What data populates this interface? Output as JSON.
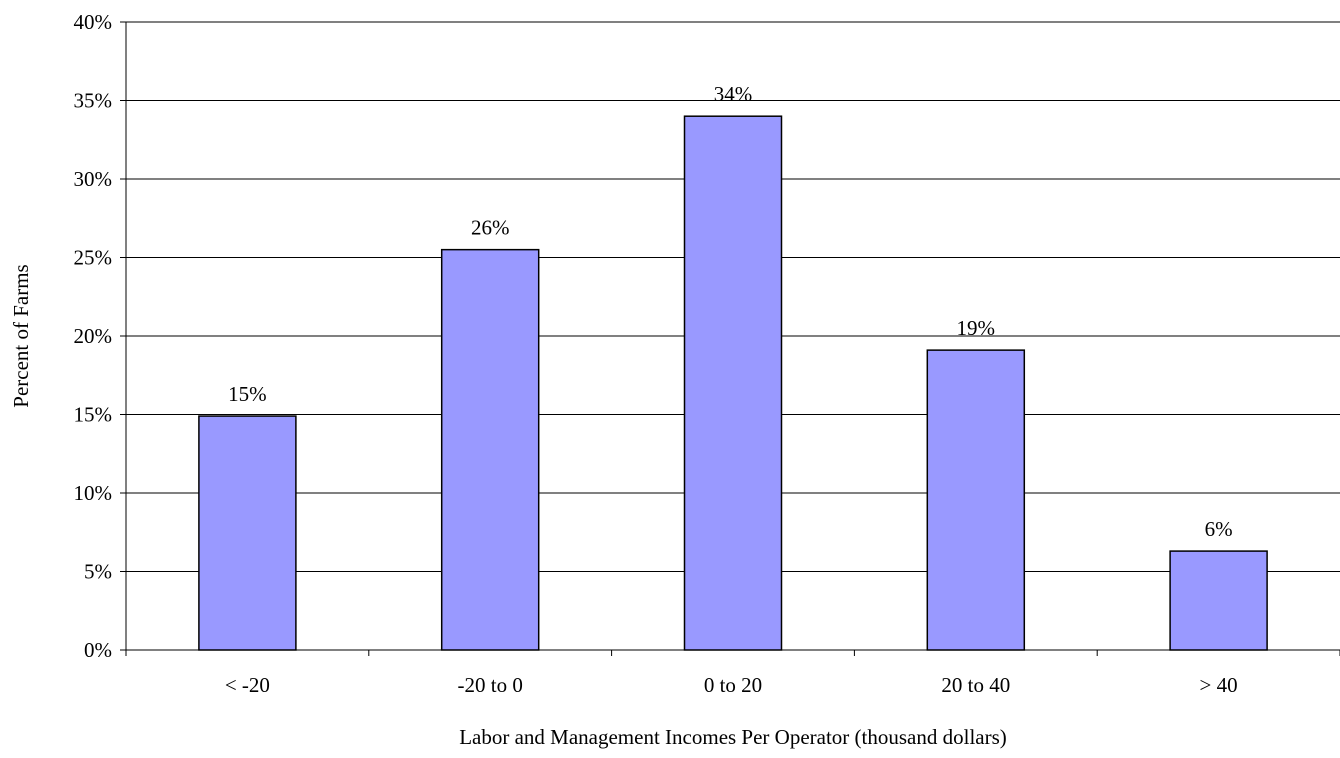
{
  "chart_data": {
    "type": "bar",
    "title": "",
    "xlabel": "Labor and Management Incomes Per Operator (thousand dollars)",
    "ylabel": "Percent of Farms",
    "categories": [
      "< -20",
      "-20 to 0",
      "0 to 20",
      "20 to 40",
      "> 40"
    ],
    "values": [
      14.9,
      25.5,
      34.0,
      19.1,
      6.3
    ],
    "data_labels": [
      "15%",
      "26%",
      "34%",
      "19%",
      "6%"
    ],
    "ylim": [
      0,
      40
    ],
    "yticks": [
      0,
      5,
      10,
      15,
      20,
      25,
      30,
      35,
      40
    ],
    "ytick_labels": [
      "0%",
      "5%",
      "10%",
      "15%",
      "20%",
      "25%",
      "30%",
      "35%",
      "40%"
    ],
    "grid": true,
    "legend": "none",
    "colors": {
      "bar_fill": "#9999ff",
      "bar_stroke": "#000000",
      "grid": "#000000"
    }
  }
}
